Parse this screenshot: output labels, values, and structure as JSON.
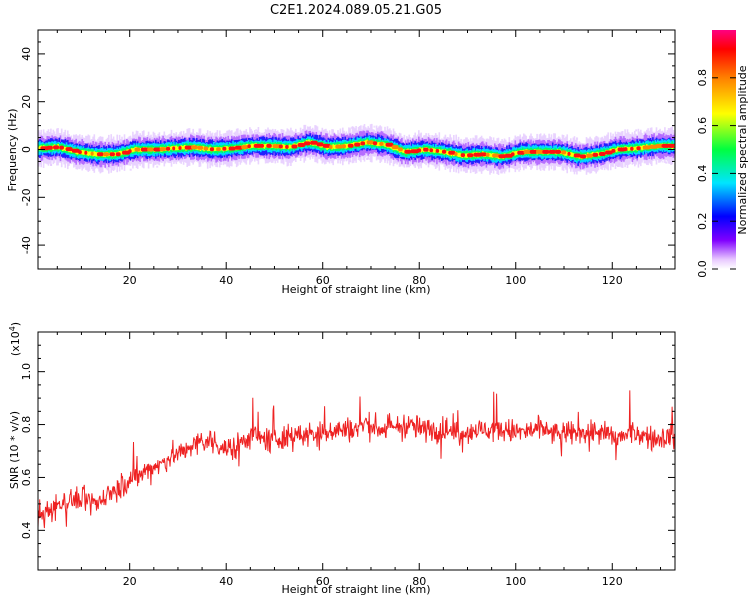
{
  "title": "C2E1.2024.089.05.21.G05",
  "chart_data": [
    {
      "type": "heatmap",
      "xlabel": "Height of straight line (km)",
      "ylabel": "Frequency (Hz)",
      "xlim": [
        1,
        133
      ],
      "ylim": [
        -50,
        50
      ],
      "xticks": [
        20,
        40,
        60,
        80,
        100,
        120
      ],
      "yticks": [
        40,
        20,
        0,
        -20,
        -40
      ],
      "grid": false,
      "colorbar": {
        "label": "Normalized spectral amplitude",
        "range": [
          0,
          1
        ],
        "ticks": [
          0.0,
          0.2,
          0.4,
          0.6,
          0.8
        ],
        "tick_labels": [
          "0.0",
          "0.2",
          "0.4",
          "0.6",
          "0.8"
        ]
      },
      "ridge": {
        "x": [
          1,
          5,
          9,
          13,
          17,
          21,
          25,
          29,
          33,
          37,
          41,
          45,
          49,
          53,
          57,
          61,
          65,
          69,
          73,
          77,
          81,
          85,
          89,
          93,
          97,
          101,
          105,
          109,
          113,
          117,
          121,
          125,
          129,
          132
        ],
        "freq_hz": [
          0.5,
          1,
          -1,
          -2,
          -2,
          0,
          0,
          0.5,
          1,
          0,
          0.5,
          1.5,
          1.5,
          1,
          3,
          1,
          1.5,
          3,
          2,
          -1,
          0,
          -1,
          -2.5,
          -2,
          -3,
          -1,
          -1,
          -1,
          -3,
          -2,
          0,
          0.5,
          1.5,
          1.5
        ]
      }
    },
    {
      "type": "line",
      "xlabel": "Height of straight line (km)",
      "ylabel": "SNR (10 * v/v)",
      "multiplier_label": "(x10",
      "multiplier_exp": "4",
      "multiplier_close": ")",
      "xlim": [
        1,
        133
      ],
      "ylim": [
        0.25,
        1.15
      ],
      "xticks": [
        20,
        40,
        60,
        80,
        100,
        120
      ],
      "yticks": [
        0.4,
        0.6,
        0.8,
        1.0
      ],
      "ytick_labels": [
        "0.4",
        "0.6",
        "0.8",
        "1.0"
      ],
      "grid": false,
      "series": [
        {
          "color": "#ee2222",
          "x": [
            1,
            5,
            9,
            13,
            17,
            21,
            25,
            29,
            33,
            37,
            41,
            45,
            49,
            53,
            57,
            61,
            65,
            69,
            73,
            77,
            81,
            85,
            89,
            93,
            97,
            101,
            105,
            109,
            113,
            117,
            121,
            125,
            129,
            132
          ],
          "values": [
            0.44,
            0.5,
            0.52,
            0.5,
            0.56,
            0.6,
            0.64,
            0.68,
            0.72,
            0.74,
            0.7,
            0.76,
            0.74,
            0.76,
            0.76,
            0.78,
            0.78,
            0.8,
            0.78,
            0.8,
            0.78,
            0.78,
            0.77,
            0.78,
            0.78,
            0.77,
            0.78,
            0.76,
            0.77,
            0.77,
            0.75,
            0.77,
            0.74,
            0.76
          ]
        }
      ]
    }
  ]
}
